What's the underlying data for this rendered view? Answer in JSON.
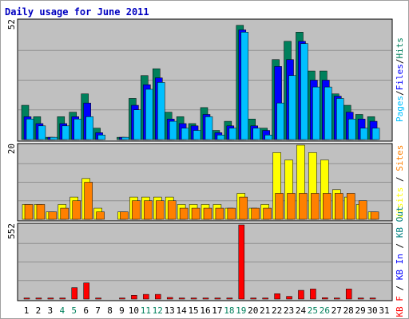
{
  "chart_data": [
    {
      "type": "bar",
      "title": "Daily usage for June 2011",
      "ymax_label": "52",
      "ylim": [
        0,
        52
      ],
      "axis_label_parts": [
        {
          "text": "Pages",
          "key": "pages"
        },
        {
          "text": "/",
          "key": "sep"
        },
        {
          "text": "Files",
          "key": "files"
        },
        {
          "text": "/",
          "key": "sep"
        },
        {
          "text": "Hits",
          "key": "hits"
        }
      ],
      "categories": [
        "1",
        "2",
        "3",
        "4",
        "5",
        "6",
        "7",
        "8",
        "9",
        "10",
        "11",
        "12",
        "13",
        "14",
        "15",
        "16",
        "17",
        "18",
        "19",
        "20",
        "21",
        "22",
        "23",
        "24",
        "25",
        "26",
        "27",
        "28",
        "29",
        "30",
        "31"
      ],
      "series": [
        {
          "key": "hits",
          "values": [
            15,
            10,
            1,
            10,
            12,
            20,
            5,
            0,
            1,
            18,
            28,
            31,
            12,
            10,
            7,
            14,
            4,
            8,
            50,
            9,
            5,
            35,
            43,
            47,
            30,
            30,
            20,
            15,
            11,
            10,
            0
          ]
        },
        {
          "key": "files",
          "values": [
            10,
            7,
            1,
            7,
            10,
            16,
            3,
            0,
            1,
            15,
            24,
            27,
            9,
            7,
            6,
            11,
            3,
            6,
            48,
            6,
            4,
            32,
            35,
            43,
            26,
            26,
            19,
            12,
            9,
            8,
            0
          ]
        },
        {
          "key": "pages",
          "values": [
            9,
            6,
            1,
            6,
            9,
            10,
            2,
            0,
            1,
            13,
            22,
            25,
            8,
            5,
            4,
            10,
            2,
            5,
            47,
            5,
            2,
            16,
            28,
            42,
            23,
            23,
            18,
            9,
            5,
            5,
            0
          ]
        }
      ]
    },
    {
      "type": "bar",
      "ymax_label": "20",
      "ylim": [
        0,
        20
      ],
      "axis_label_parts": [
        {
          "text": "Visits",
          "key": "visits"
        },
        {
          "text": " / ",
          "key": "sep"
        },
        {
          "text": "Sites",
          "key": "sites"
        }
      ],
      "categories": [
        "1",
        "2",
        "3",
        "4",
        "5",
        "6",
        "7",
        "8",
        "9",
        "10",
        "11",
        "12",
        "13",
        "14",
        "15",
        "16",
        "17",
        "18",
        "19",
        "20",
        "21",
        "22",
        "23",
        "24",
        "25",
        "26",
        "27",
        "28",
        "29",
        "30",
        "31"
      ],
      "series": [
        {
          "key": "visits",
          "values": [
            4,
            4,
            2,
            4,
            6,
            11,
            3,
            0,
            2,
            6,
            6,
            6,
            6,
            4,
            4,
            4,
            4,
            3,
            7,
            3,
            4,
            18,
            16,
            20,
            18,
            16,
            8,
            6,
            4,
            2,
            0
          ]
        },
        {
          "key": "sites",
          "values": [
            4,
            4,
            2,
            3,
            5,
            10,
            2,
            0,
            2,
            5,
            5,
            5,
            5,
            3,
            3,
            3,
            3,
            3,
            6,
            3,
            3,
            7,
            7,
            7,
            7,
            7,
            7,
            7,
            5,
            2,
            0
          ]
        }
      ]
    },
    {
      "type": "bar",
      "ymax_label": "552",
      "ylim": [
        0,
        552
      ],
      "axis_label_parts": [
        {
          "text": "KB F",
          "key": "kbf"
        },
        {
          "text": " / ",
          "key": "sep"
        },
        {
          "text": "KB In",
          "key": "kbin"
        },
        {
          "text": " / ",
          "key": "sep"
        },
        {
          "text": "KB Out",
          "key": "kbout"
        }
      ],
      "categories": [
        "1",
        "2",
        "3",
        "4",
        "5",
        "6",
        "7",
        "8",
        "9",
        "10",
        "11",
        "12",
        "13",
        "14",
        "15",
        "16",
        "17",
        "18",
        "19",
        "20",
        "21",
        "22",
        "23",
        "24",
        "25",
        "26",
        "27",
        "28",
        "29",
        "30",
        "31"
      ],
      "series": [
        {
          "key": "kbf",
          "values": [
            8,
            8,
            8,
            8,
            85,
            120,
            8,
            0,
            8,
            28,
            35,
            35,
            12,
            8,
            8,
            8,
            8,
            8,
            552,
            8,
            8,
            40,
            20,
            65,
            75,
            10,
            8,
            75,
            8,
            8,
            0
          ]
        }
      ]
    }
  ],
  "x_axis": {
    "labels": [
      "1",
      "2",
      "3",
      "4",
      "5",
      "6",
      "7",
      "8",
      "9",
      "10",
      "11",
      "12",
      "13",
      "14",
      "15",
      "16",
      "17",
      "18",
      "19",
      "20",
      "21",
      "22",
      "23",
      "24",
      "25",
      "26",
      "27",
      "28",
      "29",
      "30",
      "31"
    ],
    "weekend_days": [
      "4",
      "5",
      "11",
      "12",
      "18",
      "19",
      "25",
      "26"
    ]
  },
  "colors": {
    "background": "#ffffff",
    "panel": "#c0c0c0",
    "grid": "#909090",
    "frame": "#000000",
    "title": "#0000c0",
    "hits": "#00805c",
    "files": "#0000ff",
    "pages": "#00c0ff",
    "visits": "#ffff00",
    "sites": "#ff8000",
    "kbf": "#ff0000",
    "kbin": "#0000ff",
    "kbout": "#008080",
    "sep": "#000000",
    "weekday_label": "#000000",
    "weekend_label": "#00805c"
  }
}
